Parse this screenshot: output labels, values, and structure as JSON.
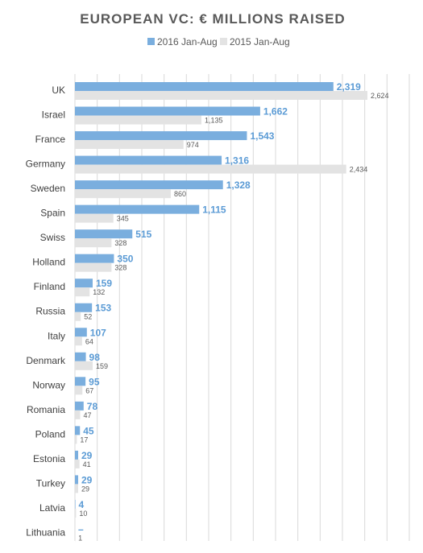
{
  "chart_data": {
    "type": "bar",
    "orientation": "horizontal",
    "title": "EUROPEAN VC: € MILLIONS RAISED",
    "legend_position": "top",
    "grid": true,
    "xlim": [
      0,
      3000
    ],
    "categories": [
      "UK",
      "Israel",
      "France",
      "Germany",
      "Sweden",
      "Spain",
      "Swiss",
      "Holland",
      "Finland",
      "Russia",
      "Italy",
      "Denmark",
      "Norway",
      "Romania",
      "Poland",
      "Estonia",
      "Turkey",
      "Latvia",
      "Lithuania"
    ],
    "series": [
      {
        "name": "2016 Jan-Aug",
        "color": "#7aaede",
        "label_color": "#5b9bd5",
        "values": [
          2319,
          1662,
          1543,
          1316,
          1328,
          1115,
          515,
          350,
          159,
          153,
          107,
          98,
          95,
          78,
          45,
          29,
          29,
          4,
          0
        ],
        "labels": [
          "2,319",
          "1,662",
          "1,543",
          "1,316",
          "1,328",
          "1,115",
          "515",
          "350",
          "159",
          "153",
          "107",
          "98",
          "95",
          "78",
          "45",
          "29",
          "29",
          "4",
          "–"
        ]
      },
      {
        "name": "2015 Jan-Aug",
        "color": "#e3e3e3",
        "label_color": "#595959",
        "values": [
          2624,
          1135,
          974,
          2434,
          860,
          345,
          328,
          328,
          132,
          52,
          64,
          159,
          67,
          47,
          17,
          41,
          29,
          10,
          1
        ],
        "labels": [
          "2,624",
          "1,135",
          "974",
          "2,434",
          "860",
          "345",
          "328",
          "328",
          "132",
          "52",
          "64",
          "159",
          "67",
          "47",
          "17",
          "41",
          "29",
          "10",
          "1"
        ]
      }
    ]
  }
}
